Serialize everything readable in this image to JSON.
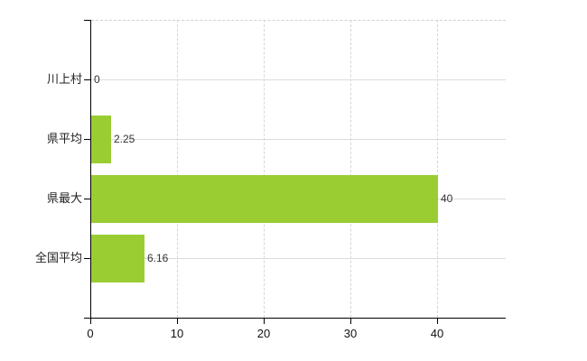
{
  "chart_data": {
    "type": "bar",
    "orientation": "horizontal",
    "title": "",
    "xlabel": "",
    "ylabel": "",
    "categories": [
      "川上村",
      "県平均",
      "県最大",
      "全国平均"
    ],
    "values": [
      0,
      2.25,
      40,
      6.16
    ],
    "value_labels": [
      "0",
      "2.25",
      "40",
      "6.16"
    ],
    "xticks": [
      0,
      10,
      20,
      30,
      40
    ],
    "xtick_labels": [
      "0",
      "10",
      "20",
      "30",
      "40"
    ],
    "xlim": [
      0,
      47.92
    ],
    "grid": true,
    "legend": false,
    "colors": {
      "bar": "#9acd32",
      "axis": "#000000",
      "gridline_horizontal": "#d9ded7",
      "gridline_vertical": "#d8d3da",
      "plot_top_border": "#d5d0d8",
      "category_text": "#222222",
      "value_text": "#333333",
      "tick_text": "#111111",
      "background": "#ffffff"
    }
  }
}
